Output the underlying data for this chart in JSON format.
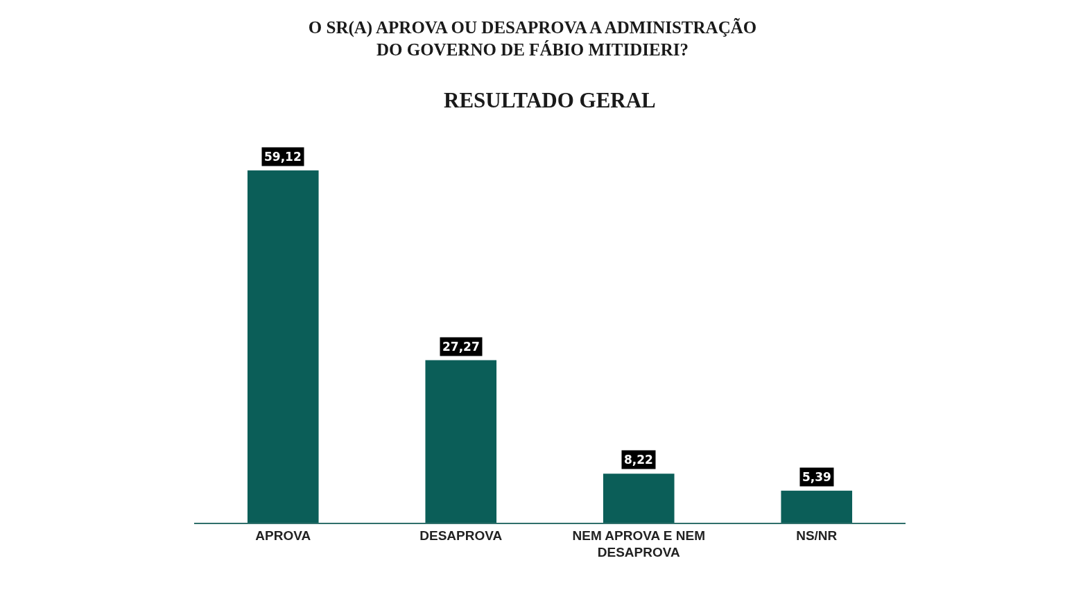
{
  "chart_data": {
    "type": "bar",
    "title": "O SR(A) APROVA OU DESAPROVA A ADMINISTRAÇÃO\nDO GOVERNO DE FÁBIO MITIDIERI?",
    "subtitle": "RESULTADO GERAL",
    "categories": [
      "APROVA",
      "DESAPROVA",
      "NEM APROVA E NEM\nDESAPROVA",
      "NS/NR"
    ],
    "values": [
      59.12,
      27.27,
      8.22,
      5.39
    ],
    "value_labels": [
      "59,12",
      "27,27",
      "8,22",
      "5,39"
    ],
    "color": "#0b5e58",
    "tick_labels": "x"
  }
}
